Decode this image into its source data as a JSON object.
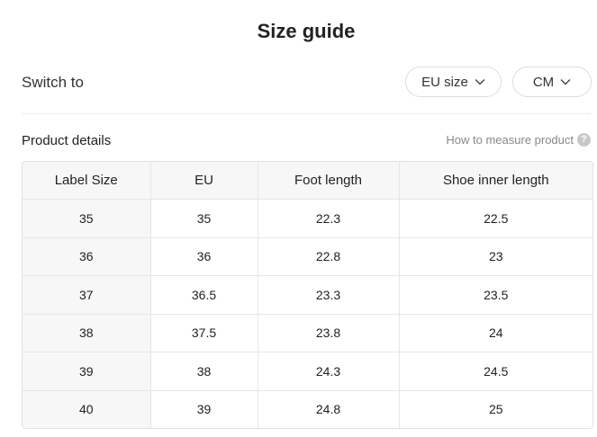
{
  "title": "Size guide",
  "switch": {
    "label": "Switch to",
    "size_system": "EU size",
    "unit": "CM"
  },
  "details": {
    "label": "Product details",
    "measure_link": "How to measure product",
    "help_icon": "?"
  },
  "table": {
    "headers": [
      "Label Size",
      "EU",
      "Foot length",
      "Shoe inner length"
    ],
    "rows": [
      [
        "35",
        "35",
        "22.3",
        "22.5"
      ],
      [
        "36",
        "36",
        "22.8",
        "23"
      ],
      [
        "37",
        "36.5",
        "23.3",
        "23.5"
      ],
      [
        "38",
        "37.5",
        "23.8",
        "24"
      ],
      [
        "39",
        "38",
        "24.3",
        "24.5"
      ],
      [
        "40",
        "39",
        "24.8",
        "25"
      ]
    ]
  }
}
